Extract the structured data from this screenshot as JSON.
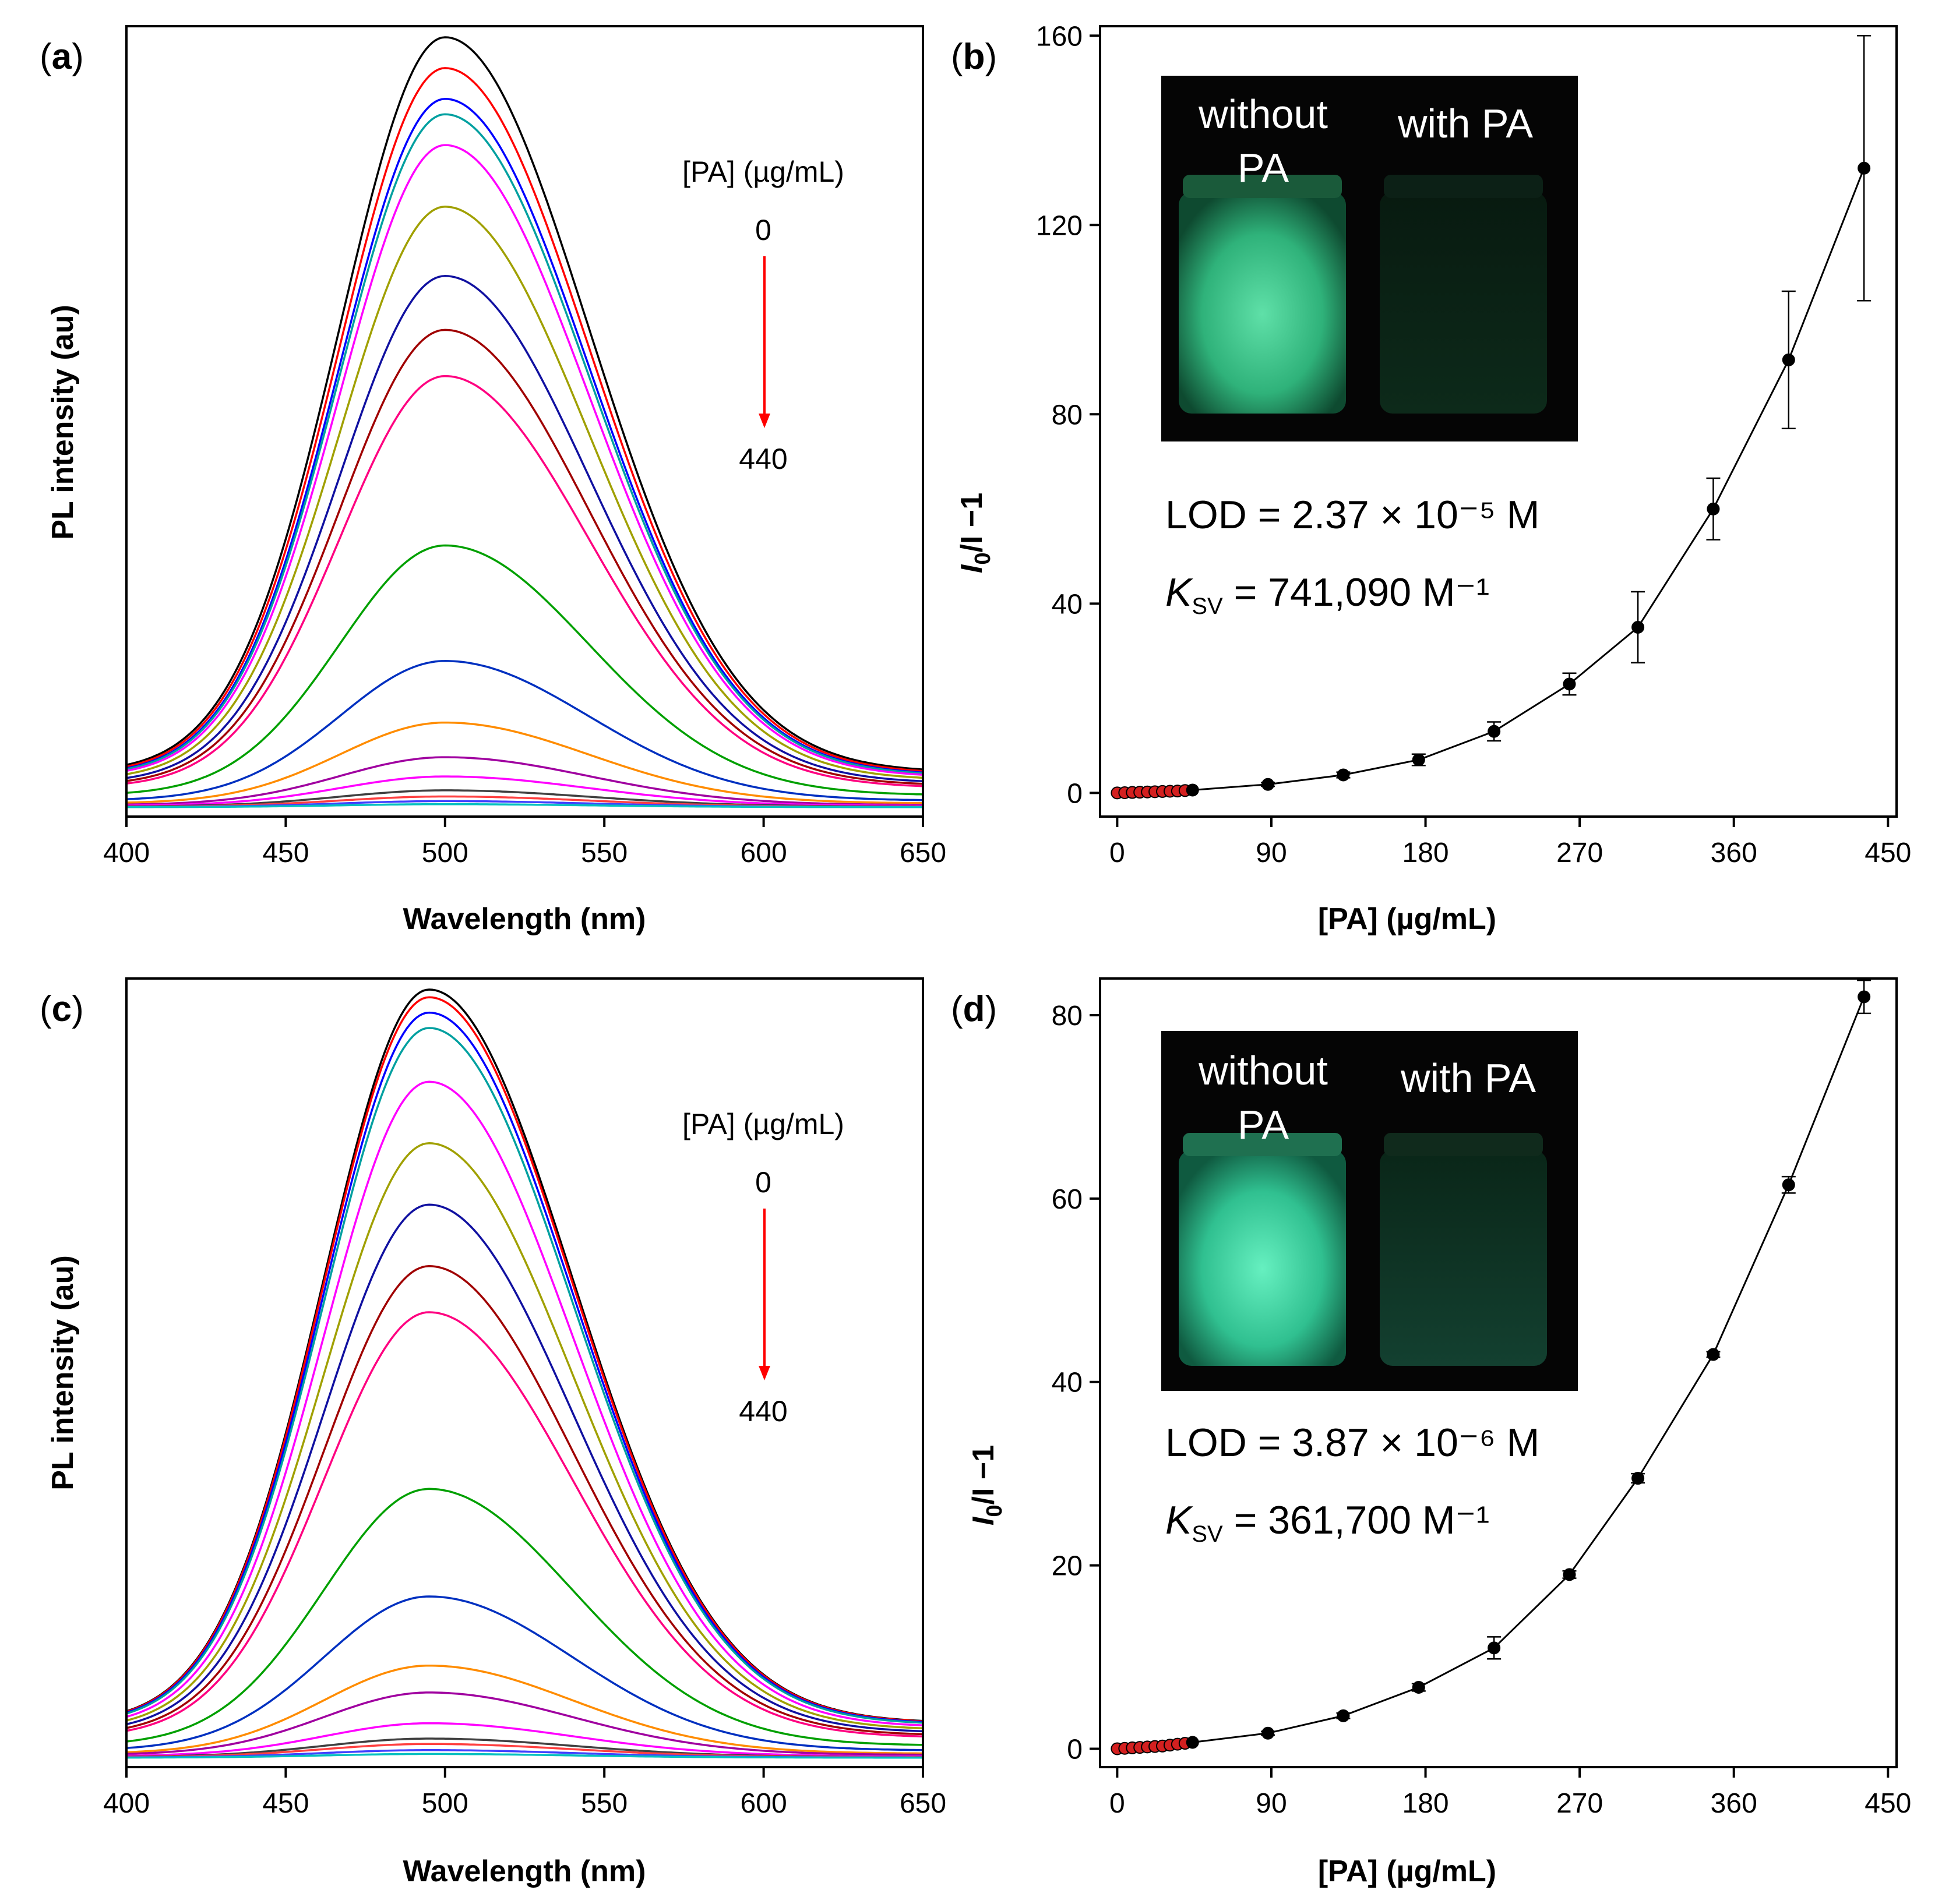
{
  "chart_data": [
    {
      "panel": "(a)",
      "type": "line",
      "xlabel": "Wavelength (nm)",
      "ylabel": "PL intensity (au)",
      "xlim": [
        400,
        650
      ],
      "xticks": [
        "400",
        "450",
        "500",
        "550",
        "600",
        "650"
      ],
      "legend_title": "[PA] (µg/mL)",
      "legend_start": "0",
      "legend_end": "440",
      "peak_nm": 500,
      "series_colors": [
        "#000000",
        "#ff0000",
        "#0000ff",
        "#00a0a0",
        "#ff00ff",
        "#a0a000",
        "#1010a0",
        "#a00000",
        "#ff0080",
        "#00a000",
        "#0030c0",
        "#ff8c00",
        "#a000a0",
        "#ff00ff",
        "#404040",
        "#ff4040",
        "#4040ff",
        "#00c0c0"
      ],
      "series_peaks": [
        1.0,
        0.96,
        0.92,
        0.9,
        0.86,
        0.78,
        0.69,
        0.62,
        0.56,
        0.34,
        0.19,
        0.11,
        0.065,
        0.04,
        0.022,
        0.014,
        0.008,
        0.004
      ]
    },
    {
      "panel": "(b)",
      "type": "line",
      "xlabel": "[PA] (µg/mL)",
      "ylabel_main": "I",
      "ylabel_sub": "0",
      "ylabel_rest": "/I −1",
      "xlim": [
        -10,
        455
      ],
      "ylim": [
        -5,
        162
      ],
      "xticks": [
        0,
        90,
        180,
        270,
        360,
        450
      ],
      "yticks": [
        0,
        40,
        80,
        120,
        160
      ],
      "x": [
        0,
        4.4,
        8.8,
        13.2,
        17.6,
        22,
        26.4,
        30.8,
        35.2,
        39.6,
        44,
        88,
        132,
        176,
        220,
        264,
        304,
        348,
        392,
        436
      ],
      "y": [
        0,
        0.05,
        0.1,
        0.15,
        0.2,
        0.25,
        0.3,
        0.35,
        0.4,
        0.5,
        0.6,
        1.8,
        3.8,
        7,
        13,
        23,
        35,
        60,
        91.5,
        132
      ],
      "yerr": [
        0,
        0,
        0,
        0,
        0,
        0,
        0,
        0,
        0,
        0,
        0,
        0.4,
        0.6,
        1.2,
        2,
        2.3,
        7.5,
        6.5,
        14.5,
        28
      ],
      "red_marker_count": 10,
      "annotations": {
        "lod": "LOD = 2.37 × 10⁻⁵ M",
        "ksv_label": "K",
        "ksv_sub": "SV",
        "ksv_value": " = 741,090 M⁻¹"
      },
      "photo_labels": {
        "left_line1": "without",
        "left_line2": "PA",
        "right": "with PA"
      }
    },
    {
      "panel": "(c)",
      "type": "line",
      "xlabel": "Wavelength (nm)",
      "ylabel": "PL intensity (au)",
      "xlim": [
        400,
        650
      ],
      "xticks": [
        "400",
        "450",
        "500",
        "550",
        "600",
        "650"
      ],
      "legend_title": "[PA] (µg/mL)",
      "legend_start": "0",
      "legend_end": "440",
      "peak_nm": 495,
      "series_colors": [
        "#000000",
        "#ff0000",
        "#0000ff",
        "#00a0a0",
        "#ff00ff",
        "#a0a000",
        "#1010a0",
        "#a00000",
        "#ff0080",
        "#00a000",
        "#0030c0",
        "#ff8c00",
        "#a000a0",
        "#ff00ff",
        "#404040",
        "#ff4040",
        "#4040ff",
        "#00c0c0"
      ],
      "series_peaks": [
        1.0,
        0.99,
        0.97,
        0.95,
        0.88,
        0.8,
        0.72,
        0.64,
        0.58,
        0.35,
        0.21,
        0.12,
        0.085,
        0.045,
        0.025,
        0.018,
        0.01,
        0.005
      ]
    },
    {
      "panel": "(d)",
      "type": "line",
      "xlabel": "[PA] (µg/mL)",
      "ylabel_main": "I",
      "ylabel_sub": "0",
      "ylabel_rest": "/I −1",
      "xlim": [
        -10,
        455
      ],
      "ylim": [
        -2,
        84
      ],
      "xticks": [
        0,
        90,
        180,
        270,
        360,
        450
      ],
      "yticks": [
        0,
        20,
        40,
        60,
        80
      ],
      "x": [
        0,
        4.4,
        8.8,
        13.2,
        17.6,
        22,
        26.4,
        30.8,
        35.2,
        39.6,
        44,
        88,
        132,
        176,
        220,
        264,
        304,
        348,
        392,
        436
      ],
      "y": [
        0,
        0.05,
        0.1,
        0.15,
        0.2,
        0.25,
        0.3,
        0.4,
        0.5,
        0.6,
        0.7,
        1.7,
        3.6,
        6.7,
        11,
        19,
        29.5,
        43,
        61.5,
        82
      ],
      "yerr": [
        0,
        0,
        0,
        0,
        0,
        0,
        0,
        0,
        0,
        0,
        0,
        0.2,
        0.3,
        0.4,
        1.2,
        0.4,
        0.5,
        0.3,
        0.9,
        1.8
      ],
      "red_marker_count": 10,
      "annotations": {
        "lod": "LOD = 3.87 × 10⁻⁶ M",
        "ksv_label": "K",
        "ksv_sub": "SV",
        "ksv_value": " = 361,700 M⁻¹"
      },
      "photo_labels": {
        "left_line1": "without",
        "left_line2": "PA",
        "right": "with PA"
      }
    }
  ]
}
